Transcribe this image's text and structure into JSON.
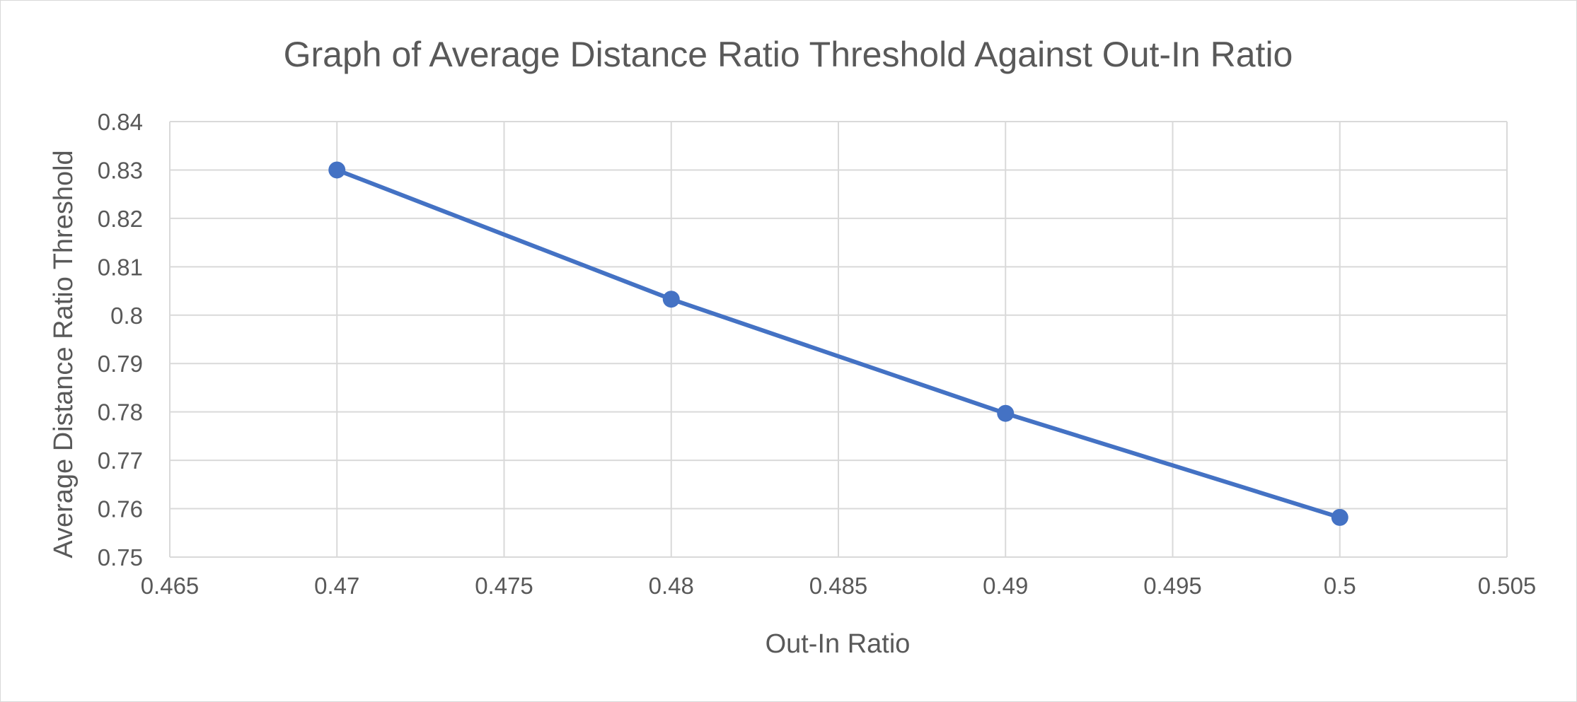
{
  "chart_data": {
    "type": "scatter",
    "title": "Graph of Average Distance Ratio Threshold Against Out-In Ratio",
    "xlabel": "Out-In Ratio",
    "ylabel": "Average Distance Ratio Threshold",
    "xlim": [
      0.465,
      0.505
    ],
    "ylim": [
      0.75,
      0.84
    ],
    "x_ticks": [
      "0.465",
      "0.47",
      "0.475",
      "0.48",
      "0.485",
      "0.49",
      "0.495",
      "0.5",
      "0.505"
    ],
    "y_ticks": [
      "0.75",
      "0.76",
      "0.77",
      "0.78",
      "0.79",
      "0.8",
      "0.81",
      "0.82",
      "0.83",
      "0.84"
    ],
    "grid": true,
    "legend": "none",
    "series": [
      {
        "x": [
          0.47,
          0.48,
          0.49,
          0.5
        ],
        "y": [
          0.83,
          0.8033,
          0.7797,
          0.7582
        ],
        "style": "line-with-markers",
        "color": "#4472c4"
      }
    ]
  }
}
